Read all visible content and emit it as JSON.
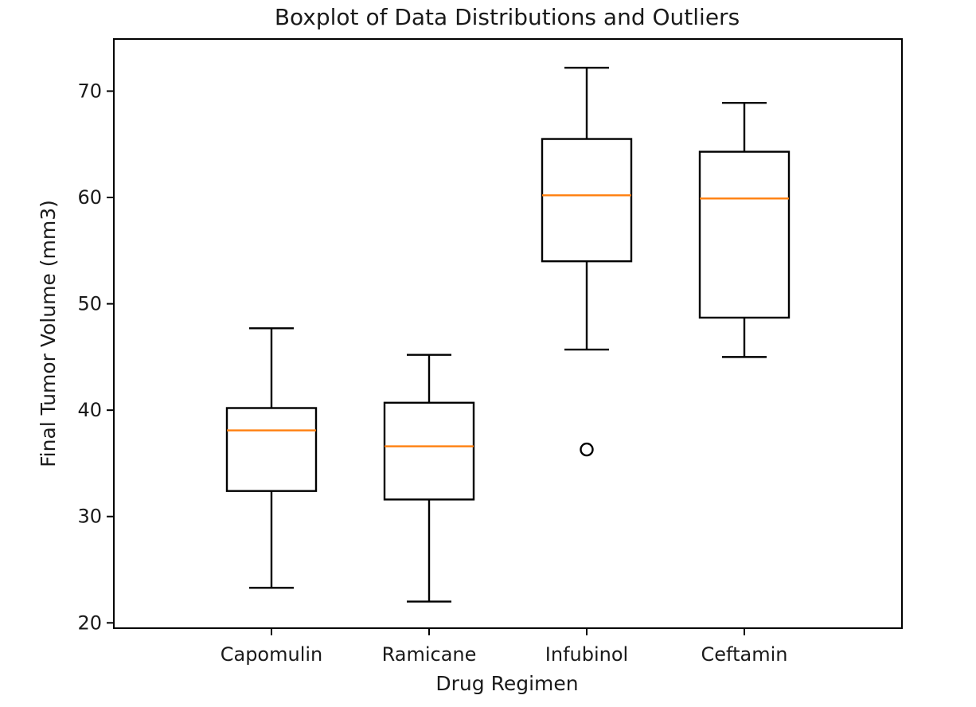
{
  "chart_data": {
    "type": "boxplot",
    "title": "Boxplot of Data Distributions and Outliers",
    "xlabel": "Drug Regimen",
    "ylabel": "Final Tumor Volume (mm3)",
    "ylim": [
      19.5,
      74.9
    ],
    "yticks": [
      20,
      30,
      40,
      50,
      60,
      70
    ],
    "grid": false,
    "categories": [
      "Capomulin",
      "Ramicane",
      "Infubinol",
      "Ceftamin"
    ],
    "boxes": [
      {
        "category": "Capomulin",
        "whisker_low": 23.3,
        "q1": 32.4,
        "median": 38.1,
        "q3": 40.2,
        "whisker_high": 47.7,
        "outliers": []
      },
      {
        "category": "Ramicane",
        "whisker_low": 22.0,
        "q1": 31.6,
        "median": 36.6,
        "q3": 40.7,
        "whisker_high": 45.2,
        "outliers": []
      },
      {
        "category": "Infubinol",
        "whisker_low": 45.7,
        "q1": 54.0,
        "median": 60.2,
        "q3": 65.5,
        "whisker_high": 72.2,
        "outliers": [
          36.3
        ]
      },
      {
        "category": "Ceftamin",
        "whisker_low": 45.0,
        "q1": 48.7,
        "median": 59.9,
        "q3": 64.3,
        "whisker_high": 68.9,
        "outliers": []
      }
    ],
    "colors": {
      "box": "#000000",
      "median": "#ff7f0e",
      "outlier": "#000000"
    }
  }
}
